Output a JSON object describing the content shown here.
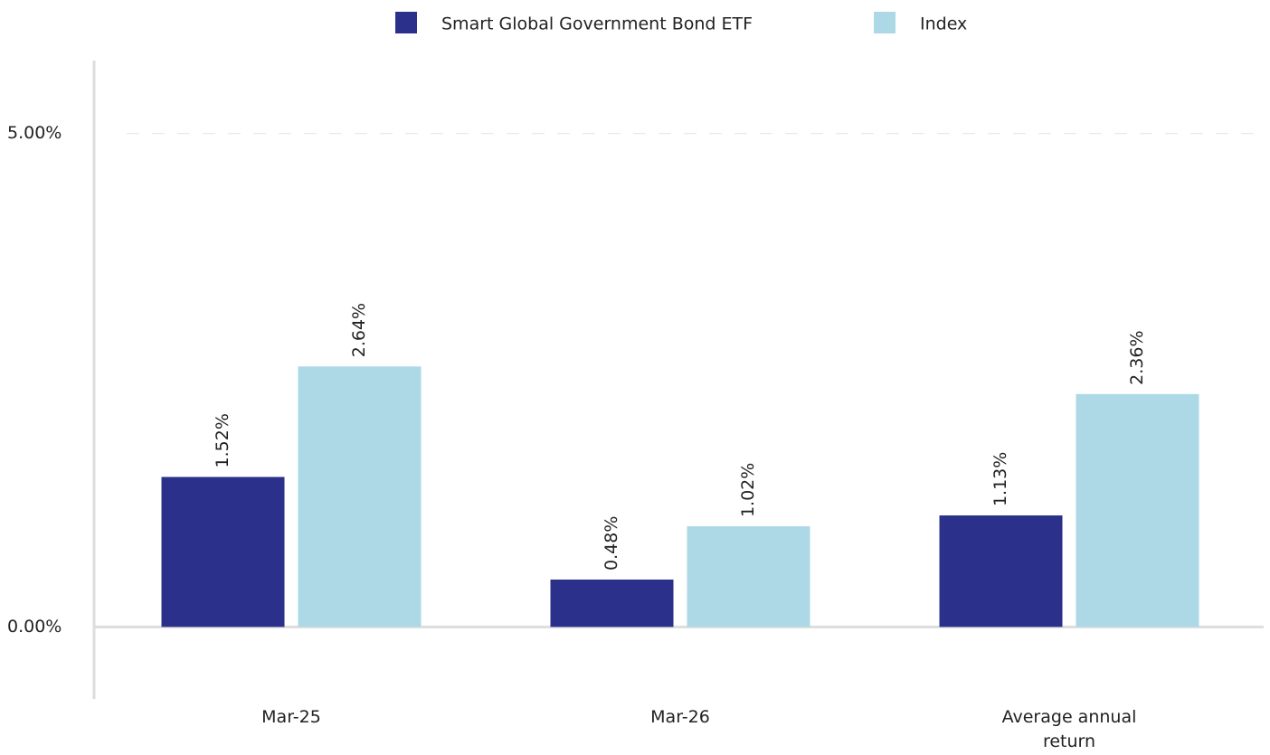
{
  "chart_data": {
    "type": "bar",
    "categories": [
      "Mar-25",
      "Mar-26",
      "Average annual return"
    ],
    "series": [
      {
        "name": "Smart Global Government Bond ETF",
        "color": "#2b318a",
        "values": [
          1.52,
          0.48,
          1.13
        ],
        "value_labels": [
          "1.52%",
          "0.48%",
          "1.13%"
        ]
      },
      {
        "name": "Index",
        "color": "#add8e6",
        "values": [
          2.64,
          1.02,
          2.36
        ],
        "value_labels": [
          "2.64%",
          "1.02%",
          "2.36%"
        ]
      }
    ],
    "ylim": [
      -0.73,
      5.74
    ],
    "yticks": [
      {
        "value": 0,
        "label": "0.00%"
      },
      {
        "value": 5,
        "label": "5.00%"
      }
    ],
    "grid": true,
    "legend": "top"
  }
}
